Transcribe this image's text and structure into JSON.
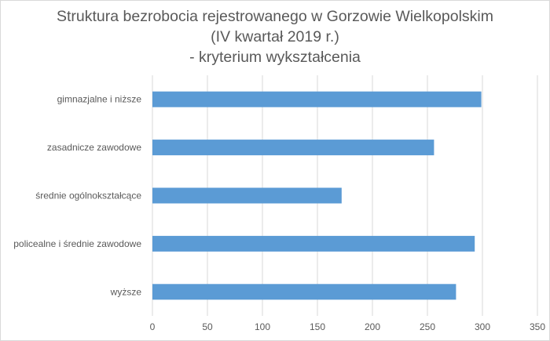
{
  "chart_data": {
    "type": "bar",
    "orientation": "horizontal",
    "title_lines": [
      "Struktura bezrobocia rejestrowanego w Gorzowie Wielkopolskim",
      "(IV kwartał 2019 r.)",
      "- kryterium wykształcenia"
    ],
    "categories": [
      "gimnazjalne i niższe",
      "zasadnicze zawodowe",
      "średnie ogólnokształcące",
      "policealne i średnie zawodowe",
      "wyższe"
    ],
    "values": [
      299,
      256,
      172,
      293,
      276
    ],
    "xlim": [
      0,
      350
    ],
    "x_ticks": [
      0,
      50,
      100,
      150,
      200,
      250,
      300,
      350
    ],
    "grid": "vertical",
    "legend": "none",
    "bar_color": "#5b9bd5",
    "grid_color": "#d9d9d9",
    "text_color": "#595959"
  }
}
